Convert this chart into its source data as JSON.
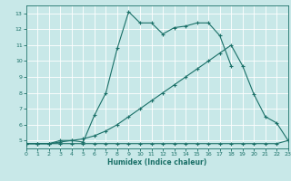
{
  "xlabel": "Humidex (Indice chaleur)",
  "bg_color": "#c8e8e8",
  "line_color": "#1a7068",
  "grid_color": "#ffffff",
  "xlim": [
    0,
    23
  ],
  "ylim": [
    4.5,
    13.5
  ],
  "xticks": [
    0,
    1,
    2,
    3,
    4,
    5,
    6,
    7,
    8,
    9,
    10,
    11,
    12,
    13,
    14,
    15,
    16,
    17,
    18,
    19,
    20,
    21,
    22,
    23
  ],
  "yticks": [
    5,
    6,
    7,
    8,
    9,
    10,
    11,
    12,
    13
  ],
  "line1_x": [
    0,
    1,
    2,
    3,
    4,
    5,
    6,
    7,
    8,
    9,
    10,
    11,
    12,
    13,
    14,
    15,
    16,
    17,
    18,
    19,
    20,
    21,
    22,
    23
  ],
  "line1_y": [
    4.8,
    4.8,
    4.8,
    4.8,
    4.8,
    4.8,
    4.8,
    4.8,
    4.8,
    4.8,
    4.8,
    4.8,
    4.8,
    4.8,
    4.8,
    4.8,
    4.8,
    4.8,
    4.8,
    4.8,
    4.8,
    4.8,
    4.8,
    5.0
  ],
  "line2_x": [
    0,
    1,
    2,
    3,
    4,
    5,
    6,
    7,
    8,
    9,
    10,
    11,
    12,
    13,
    14,
    15,
    16,
    17,
    18,
    19,
    20,
    21,
    22,
    23
  ],
  "line2_y": [
    4.8,
    4.8,
    4.8,
    4.9,
    5.0,
    5.1,
    5.3,
    5.6,
    6.0,
    6.5,
    7.0,
    7.5,
    8.0,
    8.5,
    9.0,
    9.5,
    10.0,
    10.5,
    11.0,
    9.7,
    7.9,
    6.5,
    6.1,
    5.0
  ],
  "line3_x": [
    0,
    1,
    2,
    3,
    4,
    5,
    6,
    7,
    8,
    9,
    10,
    11,
    12,
    13,
    14,
    15,
    16,
    17,
    18
  ],
  "line3_y": [
    4.8,
    4.8,
    4.8,
    5.0,
    5.0,
    4.9,
    6.6,
    8.0,
    10.8,
    13.1,
    12.4,
    12.4,
    11.7,
    12.1,
    12.2,
    12.4,
    12.4,
    11.6,
    9.7
  ]
}
